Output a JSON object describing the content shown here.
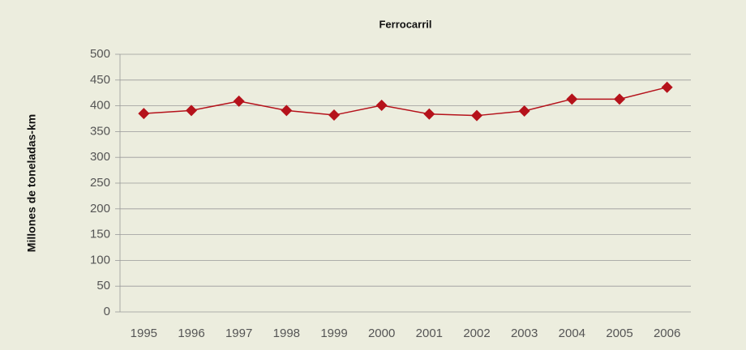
{
  "chart_data": {
    "type": "line",
    "title": "Ferrocarril",
    "y_label": "Millones de toneladas-km",
    "categories": [
      "1995",
      "1996",
      "1997",
      "1998",
      "1999",
      "2000",
      "2001",
      "2002",
      "2003",
      "2004",
      "2005",
      "2006"
    ],
    "series": [
      {
        "name": "Ferrocarril",
        "color": "#b5121b",
        "values": [
          385,
          391,
          409,
          391,
          382,
          401,
          384,
          381,
          390,
          413,
          413,
          436
        ]
      }
    ],
    "ylim": [
      0,
      500
    ],
    "yticks": [
      0,
      50,
      100,
      150,
      200,
      250,
      300,
      350,
      400,
      450,
      500
    ],
    "grid": true
  }
}
